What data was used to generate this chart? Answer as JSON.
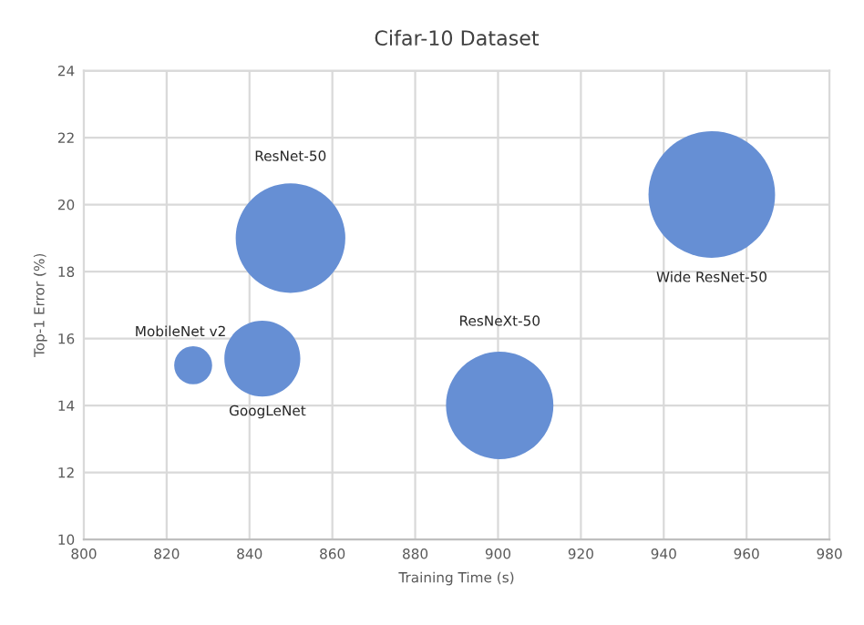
{
  "chart_data": {
    "type": "bubble",
    "title": "Cifar-10 Dataset",
    "xlabel": "Training Time (s)",
    "ylabel": "Top-1 Error (%)",
    "x": [
      826.4,
      843.1,
      849.9,
      900.4,
      951.6
    ],
    "values": [
      15.2,
      15.4,
      19.0,
      14.0,
      20.3
    ],
    "sizes": [
      0.09,
      0.36,
      0.75,
      0.72,
      1
    ],
    "color": "#668fd4",
    "annotations": [
      "MobileNet v2",
      "GoogLeNet",
      "ResNet-50",
      "ResNeXt-50",
      "Wide ResNet-50"
    ],
    "xlim": [
      800,
      980
    ],
    "xticks": [
      800,
      820,
      840,
      860,
      880,
      900,
      920,
      940,
      960,
      980
    ],
    "ylim": [
      10,
      24
    ],
    "yticks": [
      10,
      12,
      14,
      16,
      18,
      20,
      22,
      24
    ],
    "grid": true,
    "marker": "circle"
  }
}
